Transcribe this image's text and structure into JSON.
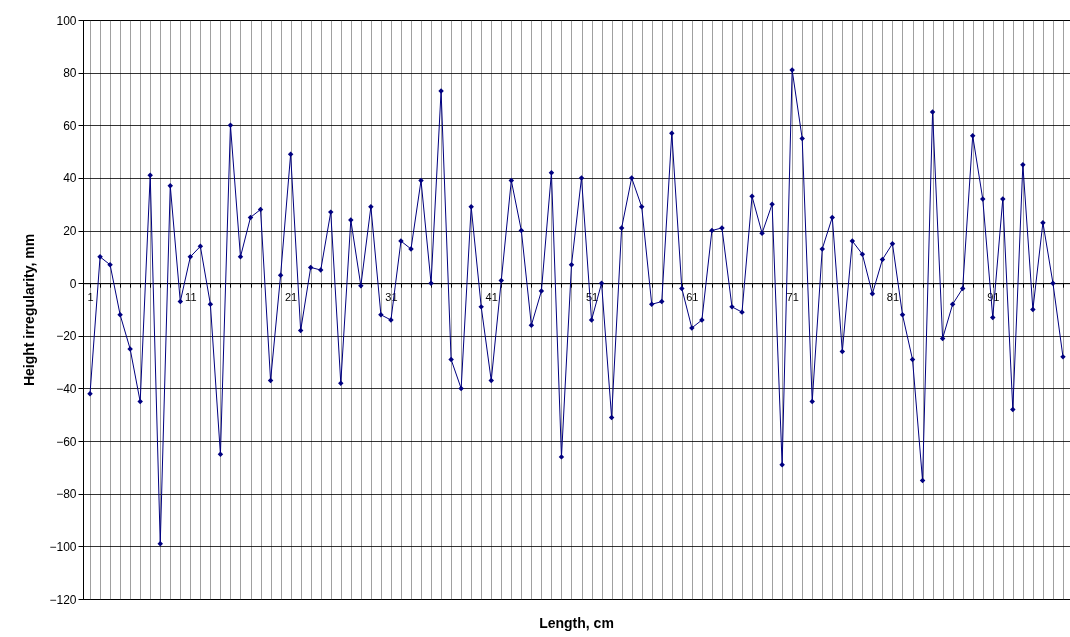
{
  "chart_data": {
    "type": "line",
    "xlabel": "Length, cm",
    "ylabel": "Height irregularity, mm",
    "categories": [
      "1",
      null,
      null,
      null,
      null,
      null,
      null,
      null,
      null,
      null,
      "11",
      null,
      null,
      null,
      null,
      null,
      null,
      null,
      null,
      null,
      "21",
      null,
      null,
      null,
      null,
      null,
      null,
      null,
      null,
      null,
      "31",
      null,
      null,
      null,
      null,
      null,
      null,
      null,
      null,
      null,
      "41",
      null,
      null,
      null,
      null,
      null,
      null,
      null,
      null,
      null,
      "51",
      null,
      null,
      null,
      null,
      null,
      null,
      null,
      null,
      null,
      "61",
      null,
      null,
      null,
      null,
      null,
      null,
      null,
      null,
      null,
      "71",
      null,
      null,
      null,
      null,
      null,
      null,
      null,
      null,
      null,
      "81",
      null,
      null,
      null,
      null,
      null,
      null,
      null,
      null,
      null,
      "91",
      null,
      null,
      null,
      null,
      null,
      null,
      null
    ],
    "series": [
      {
        "color": "#000080",
        "values": [
          -42,
          10,
          7,
          -12,
          -25,
          -45,
          41,
          -99,
          37,
          -7,
          10,
          14,
          -8,
          -65,
          60,
          10,
          25,
          28,
          -37,
          3,
          49,
          -18,
          6,
          5,
          27,
          -38,
          24,
          -1,
          29,
          -12,
          -14,
          16,
          13,
          39,
          0,
          73,
          -29,
          -40,
          29,
          -9,
          -37,
          1,
          39,
          20,
          -16,
          -3,
          42,
          -66,
          7,
          40,
          -14,
          0,
          -51,
          21,
          40,
          29,
          -8,
          -7,
          57,
          -2,
          -17,
          -14,
          20,
          21,
          -9,
          -11,
          33,
          19,
          30,
          -69,
          81,
          55,
          -45,
          13,
          25,
          -26,
          16,
          11,
          -4,
          9,
          15,
          -12,
          -29,
          -75,
          65,
          -21,
          -8,
          -2,
          56,
          32,
          -13,
          32,
          -48,
          45,
          -10,
          23,
          0,
          -28
        ]
      }
    ],
    "ylim": [
      -120,
      100
    ],
    "yticks": [
      -120,
      -100,
      -80,
      -60,
      -40,
      -20,
      0,
      20,
      40,
      60,
      80,
      100
    ],
    "grid": true,
    "marker": "diamond",
    "line_style": "solid"
  }
}
